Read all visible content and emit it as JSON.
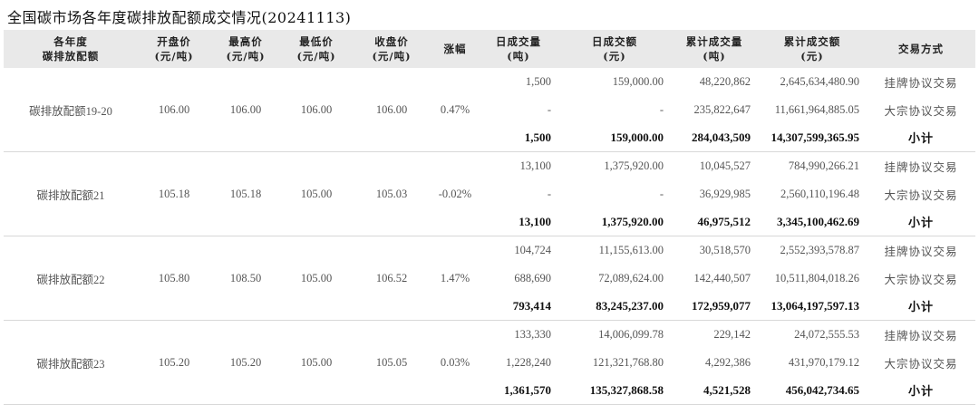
{
  "title": "全国碳市场各年度碳排放配额成交情况(20241113)",
  "headers": [
    "各年度\n碳排放配额",
    "开盘价\n(元/吨)",
    "最高价\n(元/吨)",
    "最低价\n(元/吨)",
    "收盘价\n(元/吨)",
    "涨幅",
    "日成交量\n(吨)",
    "日成交额\n(元)",
    "累计成交量\n(吨)",
    "累计成交额\n(元)",
    "交易方式"
  ],
  "groups": [
    {
      "name": "碳排放配额19-20",
      "open": "106.00",
      "high": "106.00",
      "low": "106.00",
      "close": "106.00",
      "change": "0.47%",
      "rows": [
        {
          "daily_volume": "1,500",
          "daily_amount": "159,000.00",
          "cum_volume": "48,220,862",
          "cum_amount": "2,645,634,480.90",
          "method": "挂牌协议交易"
        },
        {
          "daily_volume": "-",
          "daily_amount": "-",
          "cum_volume": "235,822,647",
          "cum_amount": "11,661,964,885.05",
          "method": "大宗协议交易"
        },
        {
          "daily_volume": "1,500",
          "daily_amount": "159,000.00",
          "cum_volume": "284,043,509",
          "cum_amount": "14,307,599,365.95",
          "method": "小计"
        }
      ]
    },
    {
      "name": "碳排放配额21",
      "open": "105.18",
      "high": "105.18",
      "low": "105.00",
      "close": "105.03",
      "change": "-0.02%",
      "rows": [
        {
          "daily_volume": "13,100",
          "daily_amount": "1,375,920.00",
          "cum_volume": "10,045,527",
          "cum_amount": "784,990,266.21",
          "method": "挂牌协议交易"
        },
        {
          "daily_volume": "-",
          "daily_amount": "-",
          "cum_volume": "36,929,985",
          "cum_amount": "2,560,110,196.48",
          "method": "大宗协议交易"
        },
        {
          "daily_volume": "13,100",
          "daily_amount": "1,375,920.00",
          "cum_volume": "46,975,512",
          "cum_amount": "3,345,100,462.69",
          "method": "小计"
        }
      ]
    },
    {
      "name": "碳排放配额22",
      "open": "105.80",
      "high": "108.50",
      "low": "105.00",
      "close": "106.52",
      "change": "1.47%",
      "rows": [
        {
          "daily_volume": "104,724",
          "daily_amount": "11,155,613.00",
          "cum_volume": "30,518,570",
          "cum_amount": "2,552,393,578.87",
          "method": "挂牌协议交易"
        },
        {
          "daily_volume": "688,690",
          "daily_amount": "72,089,624.00",
          "cum_volume": "142,440,507",
          "cum_amount": "10,511,804,018.26",
          "method": "大宗协议交易"
        },
        {
          "daily_volume": "793,414",
          "daily_amount": "83,245,237.00",
          "cum_volume": "172,959,077",
          "cum_amount": "13,064,197,597.13",
          "method": "小计"
        }
      ]
    },
    {
      "name": "碳排放配额23",
      "open": "105.20",
      "high": "105.20",
      "low": "105.00",
      "close": "105.05",
      "change": "0.03%",
      "rows": [
        {
          "daily_volume": "133,330",
          "daily_amount": "14,006,099.78",
          "cum_volume": "229,142",
          "cum_amount": "24,072,555.53",
          "method": "挂牌协议交易"
        },
        {
          "daily_volume": "1,228,240",
          "daily_amount": "121,321,768.80",
          "cum_volume": "4,292,386",
          "cum_amount": "431,970,179.12",
          "method": "大宗协议交易"
        },
        {
          "daily_volume": "1,361,570",
          "daily_amount": "135,327,868.58",
          "cum_volume": "4,521,528",
          "cum_amount": "456,042,734.65",
          "method": "小计"
        }
      ]
    }
  ]
}
